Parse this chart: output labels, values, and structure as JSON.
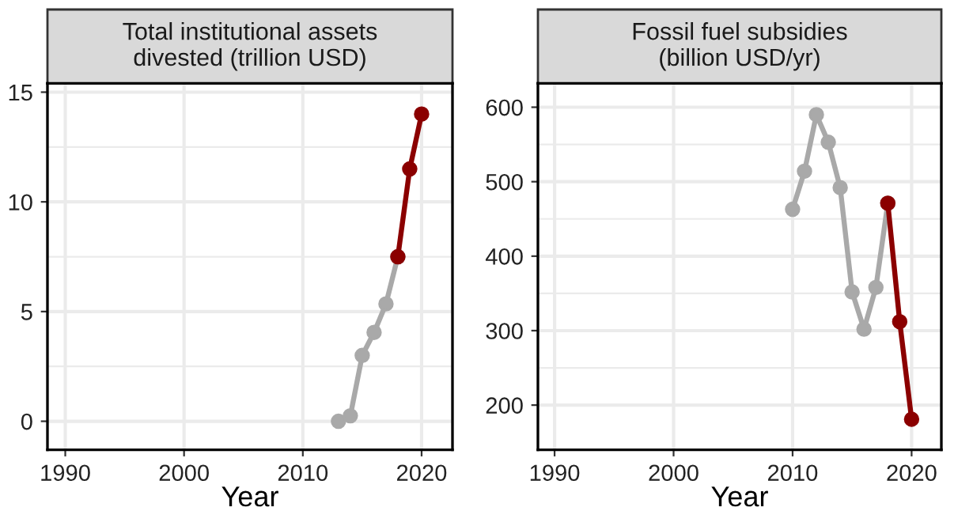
{
  "chart_data": [
    {
      "type": "line",
      "title": "Total institutional assets\ndivested (trillion USD)",
      "xlabel": "Year",
      "xlim": [
        1988.5,
        2022.6
      ],
      "xticks": [
        1990,
        2000,
        2010,
        2020
      ],
      "ylim": [
        -1.3,
        15.4
      ],
      "yticks": [
        0,
        5,
        10,
        15
      ],
      "grid": true,
      "marker": "circle",
      "line_style": "solid",
      "series": [
        {
          "color": "#a9a9a9",
          "x": [
            2013,
            2014,
            2015,
            2016,
            2017,
            2018
          ],
          "values": [
            0.0,
            0.25,
            3.0,
            4.05,
            5.35,
            7.5
          ]
        },
        {
          "color": "#8b0000",
          "x": [
            2018,
            2019,
            2020
          ],
          "values": [
            7.5,
            11.5,
            14.0
          ]
        }
      ]
    },
    {
      "type": "line",
      "title": "Fossil fuel subsidies\n(billion USD/yr)",
      "xlabel": "Year",
      "xlim": [
        1988.6,
        2022.5
      ],
      "xticks": [
        1990,
        2000,
        2010,
        2020
      ],
      "ylim": [
        140,
        632
      ],
      "yticks": [
        200,
        300,
        400,
        500,
        600
      ],
      "grid": true,
      "marker": "circle",
      "line_style": "solid",
      "series": [
        {
          "color": "#a9a9a9",
          "x": [
            2010,
            2011,
            2012,
            2013,
            2014,
            2015,
            2016,
            2017,
            2018
          ],
          "values": [
            463,
            514,
            590,
            553,
            492,
            352,
            302,
            358,
            471
          ]
        },
        {
          "color": "#8b0000",
          "x": [
            2018,
            2019,
            2020
          ],
          "values": [
            471,
            312,
            181
          ]
        }
      ]
    }
  ]
}
